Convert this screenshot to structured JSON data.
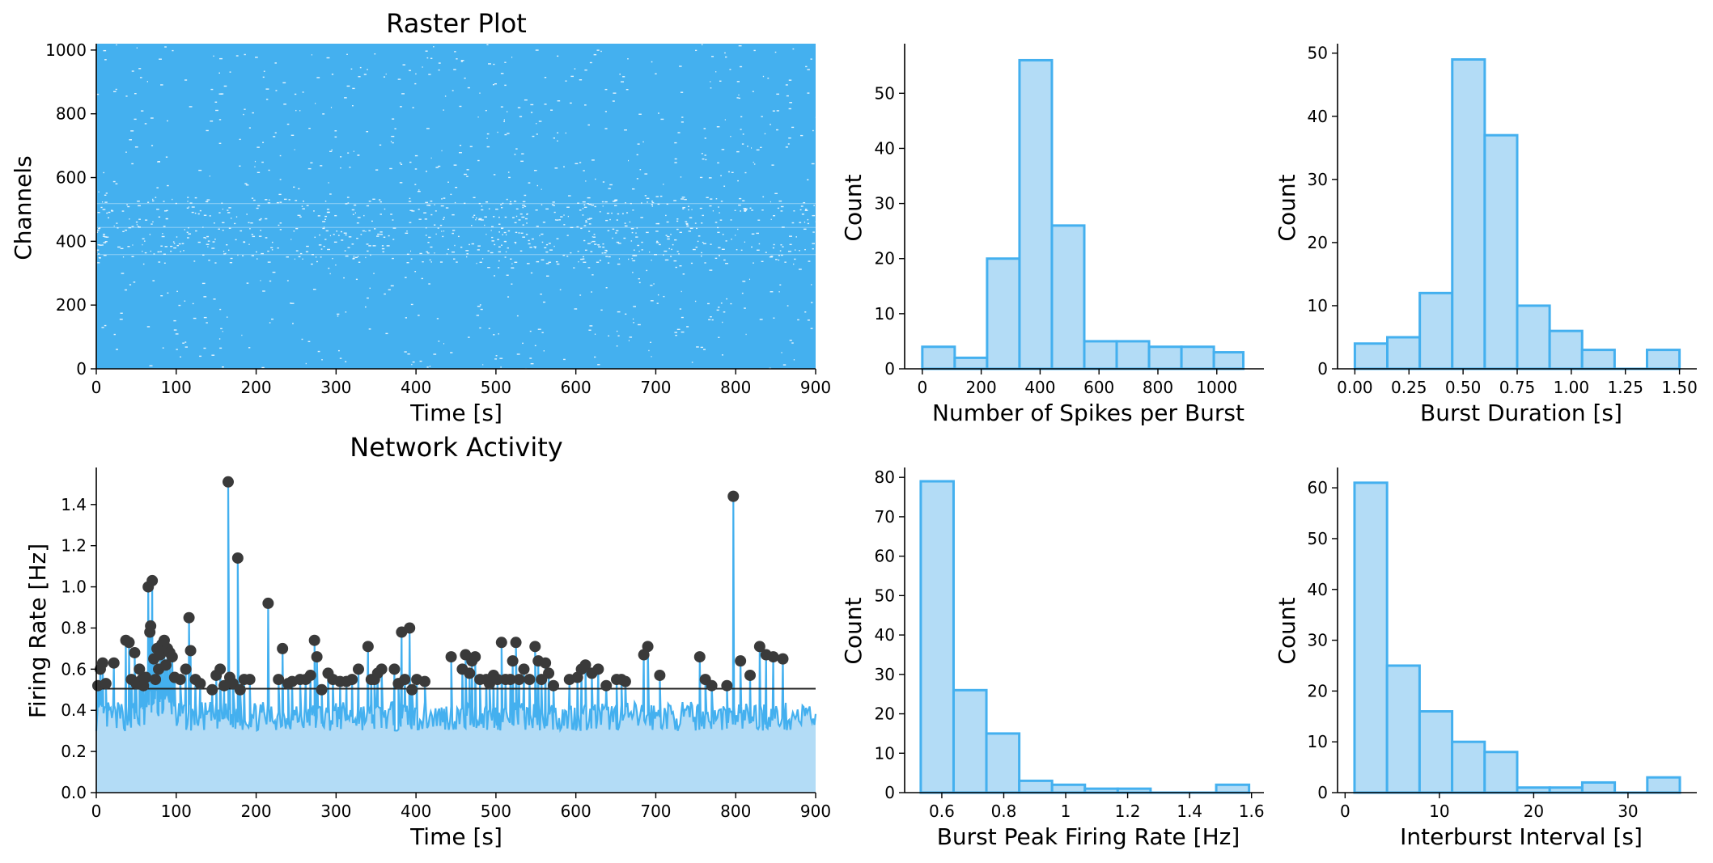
{
  "colors": {
    "accent": "#44b0ef",
    "fill_light": "#b3dcf6",
    "peak": "#3a3a3a",
    "threshold": "#222222",
    "axis": "#000000"
  },
  "chart_data": [
    {
      "id": "raster",
      "type": "scatter",
      "title": "Raster Plot",
      "xlabel": "Time [s]",
      "ylabel": "Channels",
      "xlim": [
        0,
        900
      ],
      "ylim": [
        0,
        1020
      ],
      "xticks": [
        0,
        100,
        200,
        300,
        400,
        500,
        600,
        700,
        800,
        900
      ],
      "yticks": [
        0,
        200,
        400,
        600,
        800,
        1000
      ],
      "note_density": "dense spike raster across all ~1020 channels for 0–900 s; sparse gaps near channels 340–530"
    },
    {
      "id": "network",
      "type": "line",
      "title": "Network Activity",
      "xlabel": "Time [s]",
      "ylabel": "Firing Rate [Hz]",
      "xlim": [
        0,
        900
      ],
      "ylim": [
        0,
        1.58
      ],
      "xticks": [
        0,
        100,
        200,
        300,
        400,
        500,
        600,
        700,
        800,
        900
      ],
      "yticks": [
        0.0,
        0.2,
        0.4,
        0.6,
        0.8,
        1.0,
        1.2,
        1.4
      ],
      "threshold": 0.505,
      "baseline_mean": 0.37,
      "peaks": [
        [
          2,
          0.52
        ],
        [
          5,
          0.6
        ],
        [
          8,
          0.63
        ],
        [
          12,
          0.53
        ],
        [
          22,
          0.63
        ],
        [
          37,
          0.74
        ],
        [
          41,
          0.73
        ],
        [
          44,
          0.55
        ],
        [
          48,
          0.68
        ],
        [
          50,
          0.53
        ],
        [
          54,
          0.6
        ],
        [
          57,
          0.55
        ],
        [
          59,
          0.52
        ],
        [
          62,
          0.56
        ],
        [
          65,
          1.0
        ],
        [
          67,
          0.78
        ],
        [
          68,
          0.81
        ],
        [
          70,
          1.03
        ],
        [
          72,
          0.65
        ],
        [
          74,
          0.55
        ],
        [
          76,
          0.7
        ],
        [
          78,
          0.6
        ],
        [
          80,
          0.67
        ],
        [
          82,
          0.72
        ],
        [
          85,
          0.74
        ],
        [
          87,
          0.62
        ],
        [
          89,
          0.7
        ],
        [
          92,
          0.68
        ],
        [
          95,
          0.66
        ],
        [
          98,
          0.56
        ],
        [
          105,
          0.55
        ],
        [
          112,
          0.6
        ],
        [
          116,
          0.85
        ],
        [
          118,
          0.69
        ],
        [
          124,
          0.55
        ],
        [
          130,
          0.53
        ],
        [
          145,
          0.5
        ],
        [
          150,
          0.57
        ],
        [
          155,
          0.6
        ],
        [
          160,
          0.52
        ],
        [
          165,
          1.51
        ],
        [
          167,
          0.56
        ],
        [
          171,
          0.53
        ],
        [
          177,
          1.14
        ],
        [
          180,
          0.5
        ],
        [
          185,
          0.55
        ],
        [
          192,
          0.55
        ],
        [
          215,
          0.92
        ],
        [
          228,
          0.55
        ],
        [
          233,
          0.7
        ],
        [
          240,
          0.53
        ],
        [
          245,
          0.54
        ],
        [
          255,
          0.55
        ],
        [
          262,
          0.55
        ],
        [
          268,
          0.57
        ],
        [
          273,
          0.74
        ],
        [
          276,
          0.66
        ],
        [
          282,
          0.5
        ],
        [
          290,
          0.58
        ],
        [
          296,
          0.55
        ],
        [
          305,
          0.54
        ],
        [
          313,
          0.54
        ],
        [
          320,
          0.55
        ],
        [
          328,
          0.6
        ],
        [
          340,
          0.71
        ],
        [
          344,
          0.55
        ],
        [
          348,
          0.55
        ],
        [
          352,
          0.58
        ],
        [
          357,
          0.6
        ],
        [
          373,
          0.6
        ],
        [
          378,
          0.53
        ],
        [
          382,
          0.78
        ],
        [
          386,
          0.55
        ],
        [
          392,
          0.8
        ],
        [
          395,
          0.5
        ],
        [
          401,
          0.55
        ],
        [
          411,
          0.54
        ],
        [
          444,
          0.66
        ],
        [
          458,
          0.6
        ],
        [
          462,
          0.67
        ],
        [
          467,
          0.58
        ],
        [
          470,
          0.64
        ],
        [
          474,
          0.66
        ],
        [
          480,
          0.55
        ],
        [
          488,
          0.55
        ],
        [
          492,
          0.53
        ],
        [
          497,
          0.57
        ],
        [
          502,
          0.55
        ],
        [
          507,
          0.73
        ],
        [
          512,
          0.55
        ],
        [
          518,
          0.55
        ],
        [
          521,
          0.64
        ],
        [
          525,
          0.73
        ],
        [
          529,
          0.55
        ],
        [
          535,
          0.6
        ],
        [
          542,
          0.55
        ],
        [
          549,
          0.71
        ],
        [
          553,
          0.64
        ],
        [
          557,
          0.55
        ],
        [
          562,
          0.63
        ],
        [
          566,
          0.58
        ],
        [
          572,
          0.52
        ],
        [
          592,
          0.55
        ],
        [
          602,
          0.56
        ],
        [
          607,
          0.6
        ],
        [
          612,
          0.62
        ],
        [
          620,
          0.58
        ],
        [
          628,
          0.6
        ],
        [
          638,
          0.52
        ],
        [
          651,
          0.55
        ],
        [
          657,
          0.55
        ],
        [
          662,
          0.54
        ],
        [
          685,
          0.67
        ],
        [
          690,
          0.71
        ],
        [
          705,
          0.57
        ],
        [
          755,
          0.66
        ],
        [
          762,
          0.55
        ],
        [
          770,
          0.52
        ],
        [
          789,
          0.52
        ],
        [
          797,
          1.44
        ],
        [
          806,
          0.64
        ],
        [
          818,
          0.57
        ],
        [
          830,
          0.71
        ],
        [
          838,
          0.67
        ],
        [
          847,
          0.66
        ],
        [
          859,
          0.65
        ]
      ]
    },
    {
      "id": "spikes-per-burst",
      "type": "bar",
      "xlabel": "Number of Spikes per Burst",
      "ylabel": "Count",
      "bin_edges": [
        0,
        110,
        220,
        330,
        440,
        550,
        660,
        770,
        880,
        990,
        1090
      ],
      "values": [
        4,
        2,
        20,
        56,
        26,
        5,
        5,
        4,
        4,
        3
      ],
      "xlim": [
        -60,
        1160
      ],
      "ylim": [
        0,
        59
      ],
      "xticks": [
        0,
        200,
        400,
        600,
        800,
        1000
      ],
      "yticks": [
        0,
        10,
        20,
        30,
        40,
        50
      ]
    },
    {
      "id": "burst-duration",
      "type": "bar",
      "xlabel": "Burst Duration [s]",
      "ylabel": "Count",
      "bin_edges": [
        0.0,
        0.15,
        0.3,
        0.45,
        0.6,
        0.75,
        0.9,
        1.05,
        1.2,
        1.35,
        1.5
      ],
      "values": [
        4,
        5,
        12,
        49,
        37,
        10,
        6,
        3,
        0,
        3
      ],
      "xlim": [
        -0.08,
        1.58
      ],
      "ylim": [
        0,
        51.5
      ],
      "xticks": [
        "0.00",
        "0.25",
        "0.50",
        "0.75",
        "1.00",
        "1.25",
        "1.50"
      ],
      "yticks": [
        0,
        10,
        20,
        30,
        40,
        50
      ]
    },
    {
      "id": "burst-peak-rate",
      "type": "bar",
      "xlabel": "Burst Peak Firing Rate [Hz]",
      "ylabel": "Count",
      "bin_edges": [
        0.532,
        0.638,
        0.744,
        0.85,
        0.956,
        1.062,
        1.168,
        1.274,
        1.38,
        1.486,
        1.592
      ],
      "values": [
        79,
        26,
        15,
        3,
        2,
        1,
        1,
        0,
        0,
        2
      ],
      "xlim": [
        0.48,
        1.64
      ],
      "ylim": [
        0,
        82.5
      ],
      "xticks": [
        0.6,
        0.8,
        1.0,
        1.2,
        1.4,
        1.6
      ],
      "yticks": [
        0,
        10,
        20,
        30,
        40,
        50,
        60,
        70,
        80
      ]
    },
    {
      "id": "interburst-interval",
      "type": "bar",
      "xlabel": "Interburst Interval [s]",
      "ylabel": "Count",
      "bin_edges": [
        1,
        4.45,
        7.9,
        11.35,
        14.8,
        18.25,
        21.7,
        25.15,
        28.6,
        32.05,
        35.5
      ],
      "values": [
        61,
        25,
        16,
        10,
        8,
        1,
        1,
        2,
        0,
        3
      ],
      "xlim": [
        -0.8,
        37.3
      ],
      "ylim": [
        0,
        64
      ],
      "xticks": [
        0,
        10,
        20,
        30
      ],
      "yticks": [
        0,
        10,
        20,
        30,
        40,
        50,
        60
      ]
    }
  ]
}
